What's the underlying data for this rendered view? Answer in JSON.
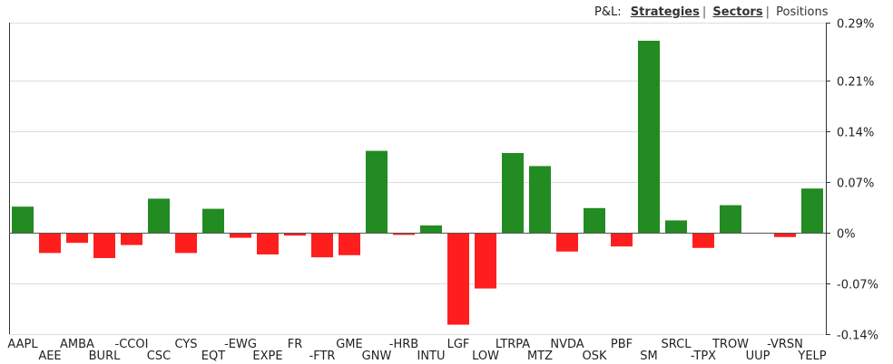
{
  "nav": {
    "label": "P&L:",
    "strategies": "Strategies",
    "sep1": "|",
    "sectors": "Sectors",
    "sep2": "|",
    "positions": "Positions"
  },
  "chart_data": {
    "type": "bar",
    "title": "",
    "xlabel": "",
    "ylabel": "",
    "ylim": [
      -0.14,
      0.29
    ],
    "y_ticks": [
      0.29,
      0.21,
      0.14,
      0.07,
      0,
      -0.07,
      -0.14
    ],
    "y_tick_labels": [
      "0.29%",
      "0.21%",
      "0.14%",
      "0.07%",
      "0%",
      "-0.07%",
      "-0.14%"
    ],
    "grid": true,
    "positive_color": "#228b22",
    "negative_color": "#ff1e1e",
    "categories": [
      "AAPL",
      "AEE",
      "AMBA",
      "BURL",
      "-CCOI",
      "CSC",
      "CYS",
      "EQT",
      "-EWG",
      "EXPE",
      "FR",
      "-FTR",
      "GME",
      "GNW",
      "-HRB",
      "INTU",
      "LGF",
      "LOW",
      "LTRPA",
      "MTZ",
      "NVDA",
      "OSK",
      "PBF",
      "SM",
      "SRCL",
      "-TPX",
      "TROW",
      "UUP",
      "-VRSN",
      "YELP"
    ],
    "values": [
      0.036,
      -0.028,
      -0.014,
      -0.035,
      -0.017,
      0.047,
      -0.028,
      0.033,
      -0.007,
      -0.03,
      -0.004,
      -0.034,
      -0.031,
      0.113,
      -0.003,
      0.01,
      -0.127,
      -0.077,
      0.11,
      0.092,
      -0.026,
      0.034,
      -0.019,
      0.265,
      0.017,
      -0.021,
      0.038,
      -0.001,
      -0.006,
      0.061
    ]
  }
}
